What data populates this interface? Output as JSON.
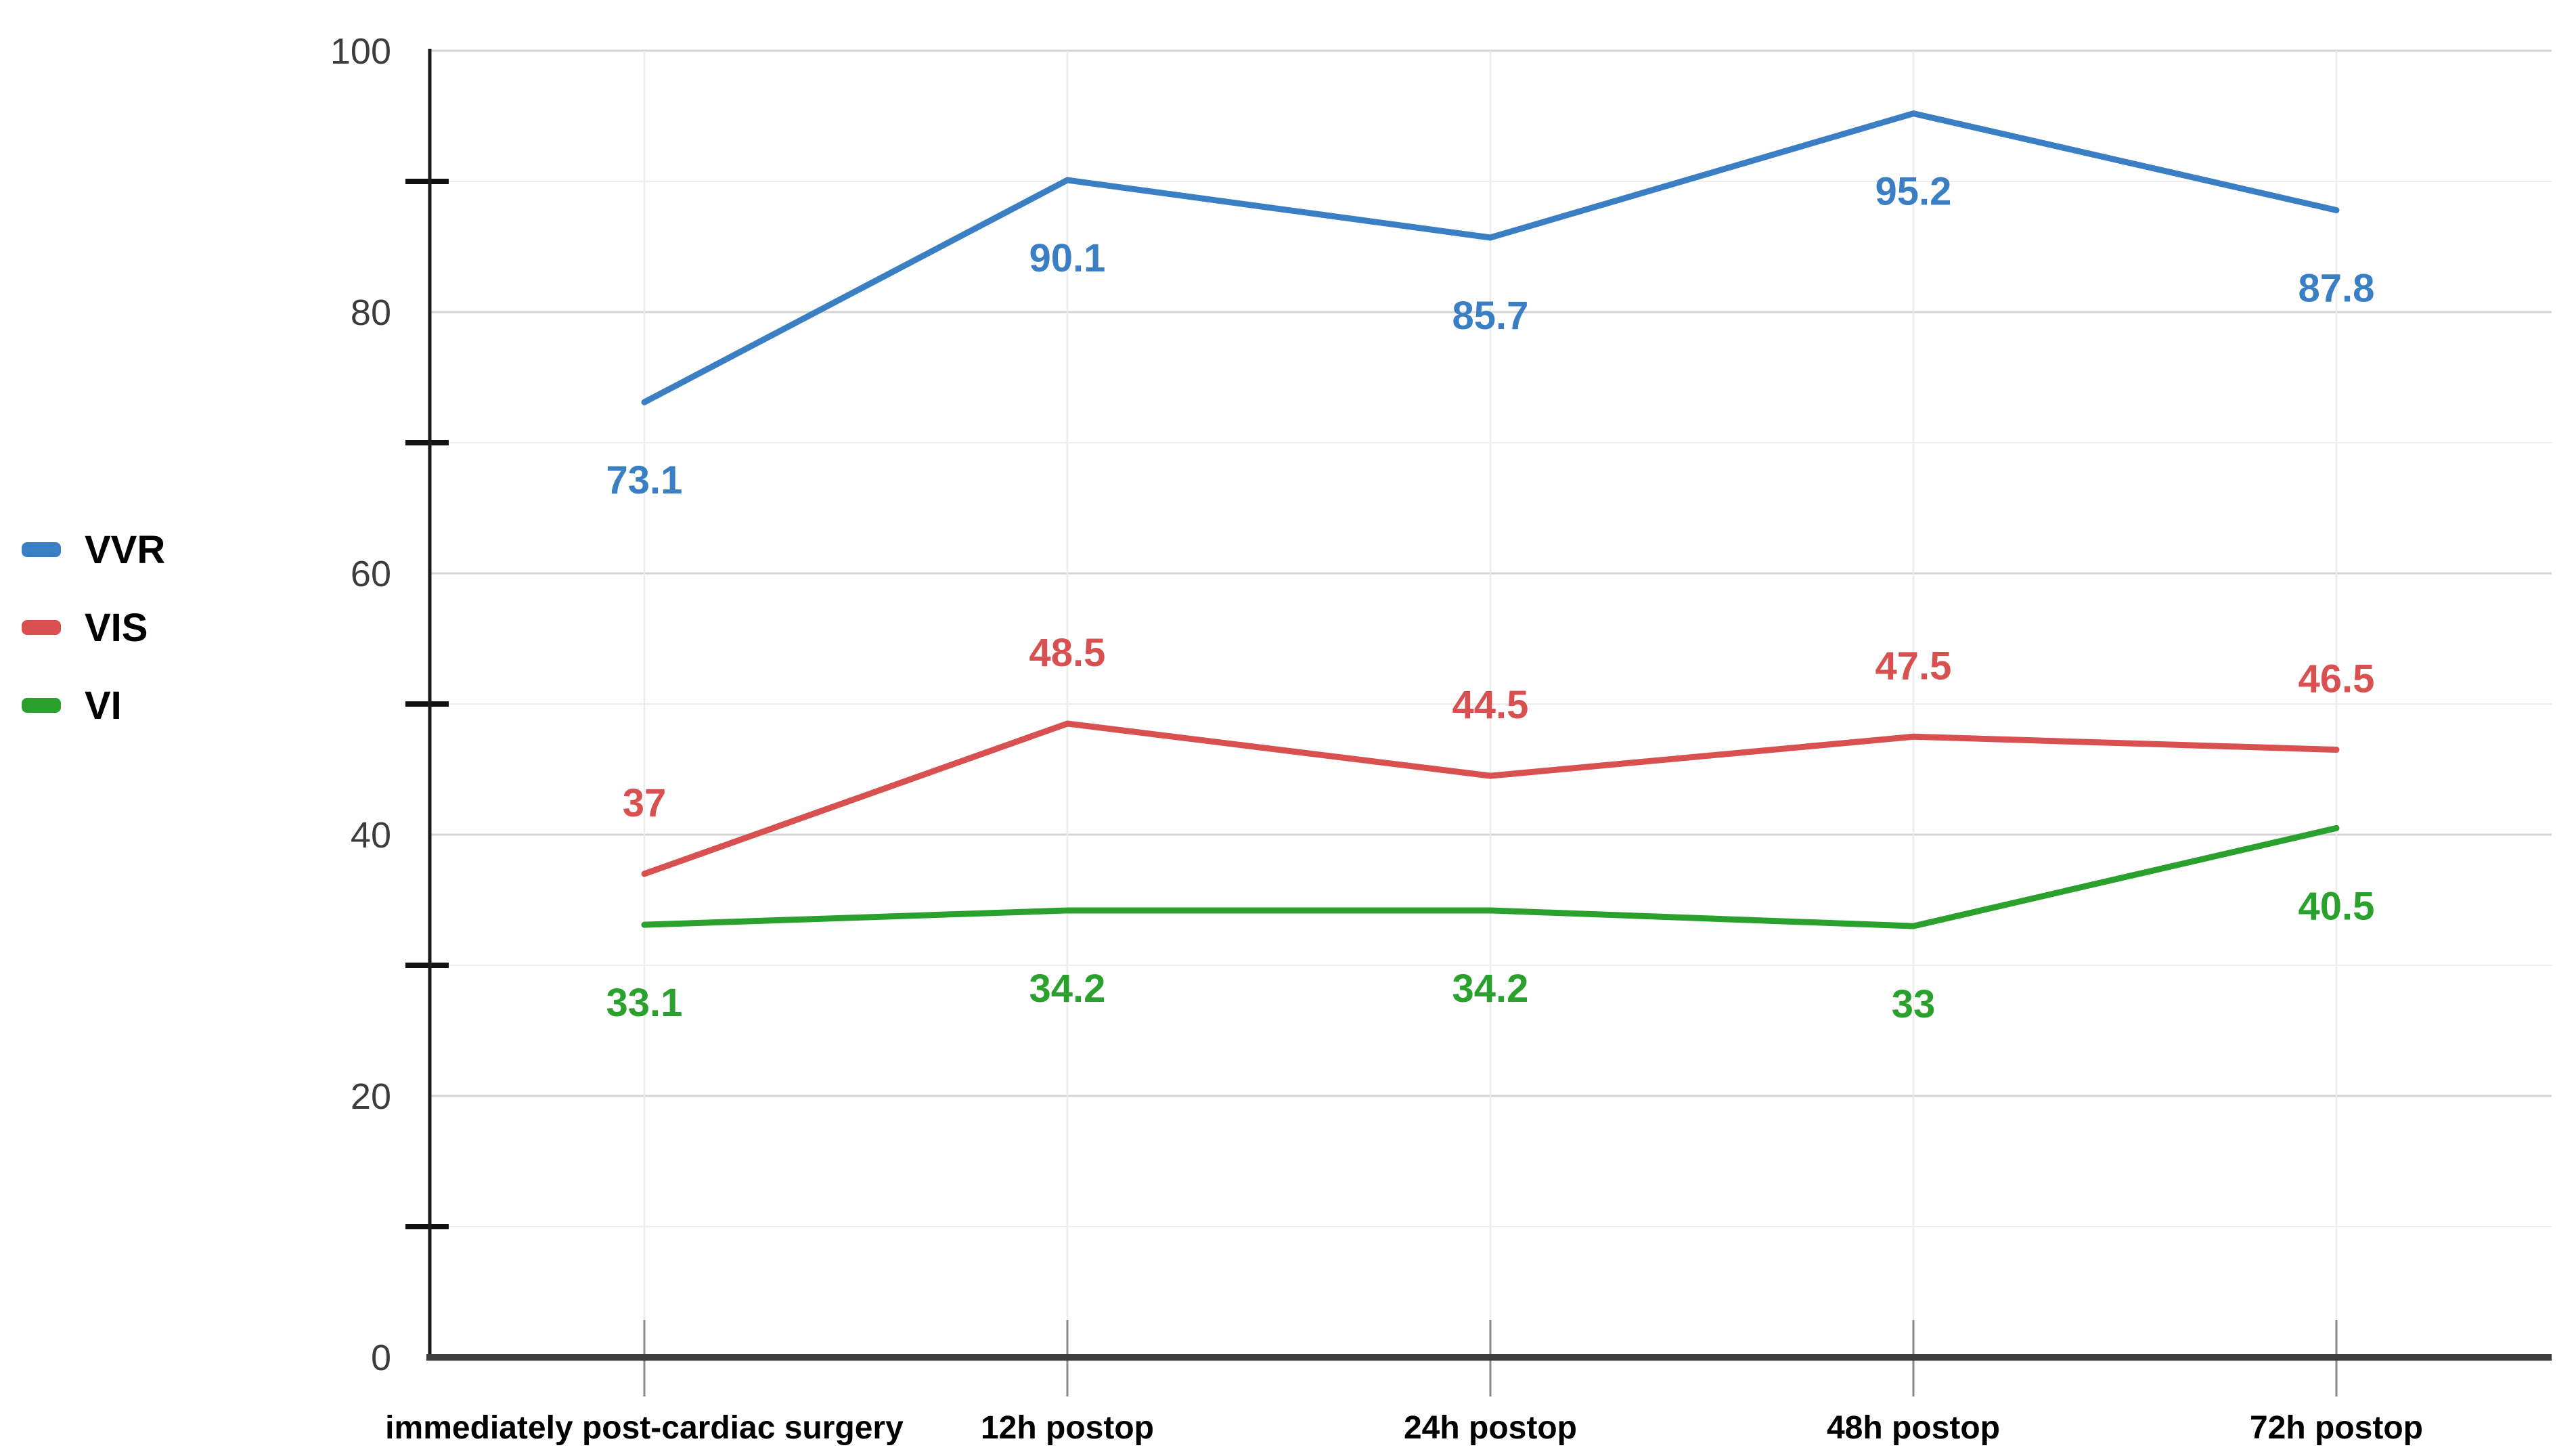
{
  "page": {
    "background": "#ffffff"
  },
  "palette": {
    "series_vvr": "#3a7ec4",
    "series_vis": "#d95050",
    "series_vi": "#2aa12d",
    "gridline_major": "#d4d4d4",
    "gridline_minor": "#ededed",
    "gridline_vertical": "#ececec",
    "y_axis_line": "#1a1a1a",
    "x_axis_line": "#3d3d3d",
    "x_tick": "#8a8a8a",
    "y_minor_tick": "#111111",
    "y_tick_label_color": "#3c3c3c",
    "x_tick_label_color": "#000000",
    "legend_label_color": "#000000"
  },
  "chart_data": {
    "type": "line",
    "title": "",
    "xlabel": "",
    "ylabel": "",
    "categories": [
      "immediately post-cardiac surgery",
      "12h postop",
      "24h postop",
      "48h postop",
      "72h postop"
    ],
    "series": [
      {
        "name": "VVR",
        "color": "#3a7ec4",
        "values": [
          73.1,
          90.1,
          85.7,
          95.2,
          87.8
        ],
        "data_labels": [
          "73.1",
          "90.1",
          "85.7",
          "95.2",
          "87.8"
        ],
        "data_label_position": "below"
      },
      {
        "name": "VIS",
        "color": "#d95050",
        "values": [
          37,
          48.5,
          44.5,
          47.5,
          46.5
        ],
        "data_labels": [
          "37",
          "48.5",
          "44.5",
          "47.5",
          "46.5"
        ],
        "data_label_position": "above"
      },
      {
        "name": "VI",
        "color": "#2aa12d",
        "values": [
          33.1,
          34.2,
          34.2,
          33,
          40.5
        ],
        "data_labels": [
          "33.1",
          "34.2",
          "34.2",
          "33",
          "40.5"
        ],
        "data_label_position": "below"
      }
    ],
    "ylim": [
      0,
      100
    ],
    "y_major_ticks": [
      0,
      20,
      40,
      60,
      80,
      100
    ],
    "y_major_tick_labels": [
      "0",
      "20",
      "40",
      "60",
      "80",
      "100"
    ],
    "y_minor_ticks": [
      10,
      30,
      50,
      70,
      90
    ],
    "legend_position": "left",
    "legend_entries": [
      "VVR",
      "VIS",
      "VI"
    ],
    "grid": {
      "horizontal_major": true,
      "horizontal_minor": true,
      "vertical_category": true
    },
    "markers": "none"
  }
}
